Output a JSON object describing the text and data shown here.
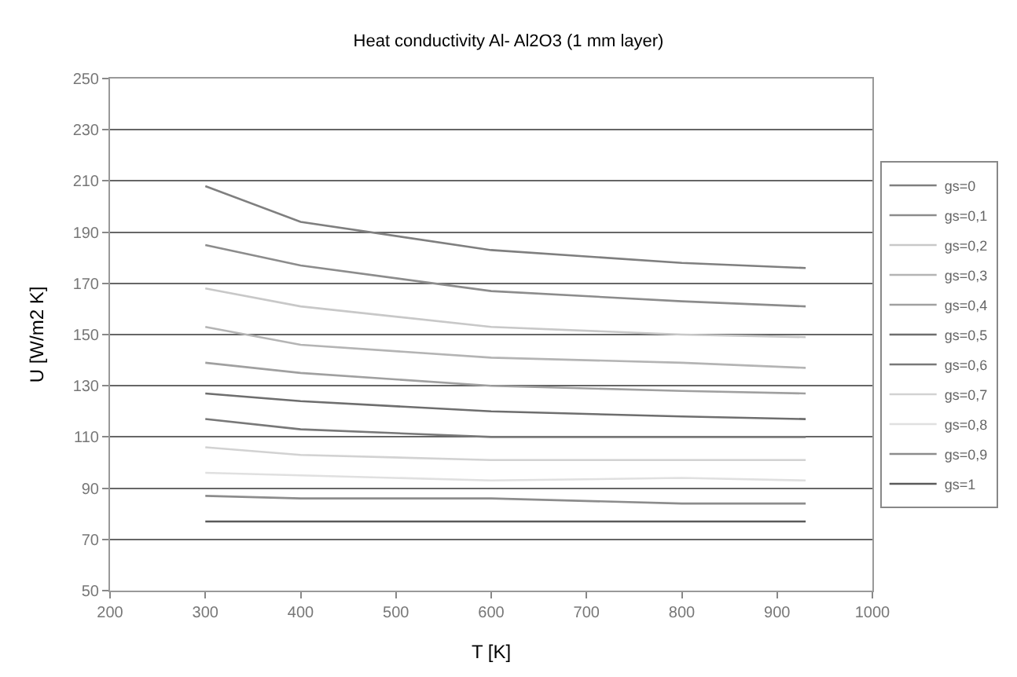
{
  "chart_data": {
    "type": "line",
    "title": "Heat conductivity Al- Al2O3 (1 mm layer)",
    "xlabel": "T [K]",
    "ylabel": "U [W/m2 K]",
    "x": [
      300,
      400,
      600,
      800,
      930
    ],
    "series": [
      {
        "name": "gs=0",
        "color": "#7f7f7f",
        "values": [
          208,
          194,
          183,
          178,
          176
        ]
      },
      {
        "name": "gs=0,1",
        "color": "#8c8c8c",
        "values": [
          185,
          177,
          167,
          163,
          161
        ]
      },
      {
        "name": "gs=0,2",
        "color": "#c8c8c8",
        "values": [
          168,
          161,
          153,
          150,
          149
        ]
      },
      {
        "name": "gs=0,3",
        "color": "#b4b4b4",
        "values": [
          153,
          146,
          141,
          139,
          137
        ]
      },
      {
        "name": "gs=0,4",
        "color": "#a0a0a0",
        "values": [
          139,
          135,
          130,
          128,
          127
        ]
      },
      {
        "name": "gs=0,5",
        "color": "#6e6e6e",
        "values": [
          127,
          124,
          120,
          118,
          117
        ]
      },
      {
        "name": "gs=0,6",
        "color": "#787878",
        "values": [
          117,
          113,
          110,
          110,
          110
        ]
      },
      {
        "name": "gs=0,7",
        "color": "#d2d2d2",
        "values": [
          106,
          103,
          101,
          101,
          101
        ]
      },
      {
        "name": "gs=0,8",
        "color": "#e0e0e0",
        "values": [
          96,
          95,
          93,
          94,
          93
        ]
      },
      {
        "name": "gs=0,9",
        "color": "#8c8c8c",
        "values": [
          87,
          86,
          86,
          84,
          84
        ]
      },
      {
        "name": "gs=1",
        "color": "#5a5a5a",
        "values": [
          77,
          77,
          77,
          77,
          77
        ]
      }
    ],
    "xlim": [
      200,
      1000
    ],
    "xticks": [
      200,
      300,
      400,
      500,
      600,
      700,
      800,
      900,
      1000
    ],
    "ylim": [
      50,
      250
    ],
    "yticks": [
      50,
      70,
      90,
      110,
      130,
      150,
      170,
      190,
      210,
      230,
      250
    ],
    "grid": "y",
    "legend": "right",
    "marker": "none",
    "line_style": "solid"
  }
}
